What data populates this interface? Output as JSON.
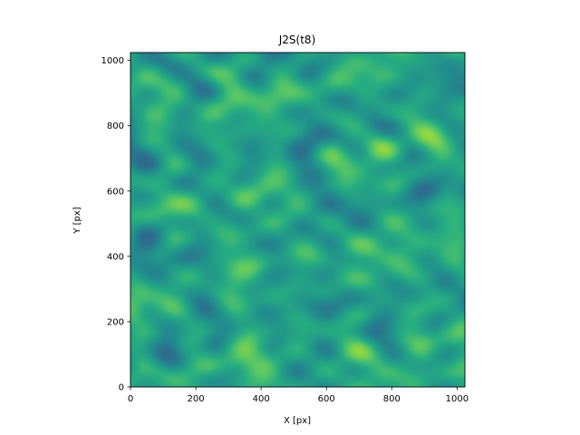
{
  "chart_data": {
    "type": "heatmap",
    "title": "J2S(t8)",
    "xlabel": "X [px]",
    "ylabel": "Y [px]",
    "xlim": [
      0,
      1024
    ],
    "ylim": [
      0,
      1024
    ],
    "xticks": [
      0,
      200,
      400,
      600,
      800,
      1000
    ],
    "yticks": [
      0,
      200,
      400,
      600,
      800,
      1000
    ],
    "colormap": "viridis",
    "grid": false,
    "legend": "none",
    "field_description": "noisy wavy texture, mostly teal-green with yellow-green highlights and dark blue streaks",
    "colors": {
      "low": "#2b6d8e",
      "mid": "#26a184",
      "high": "#b7de2a",
      "axis": "#000000"
    }
  }
}
